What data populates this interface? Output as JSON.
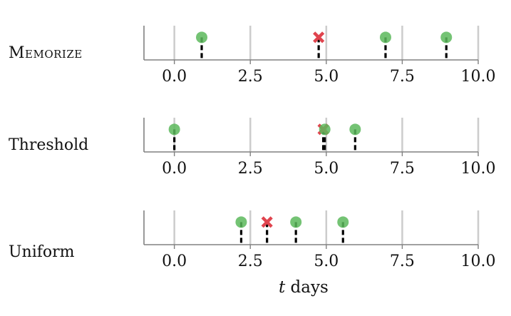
{
  "chart_data": [
    {
      "type": "scatter",
      "label": "Memorize",
      "xlim": [
        -1,
        10
      ],
      "xticks": [
        0.0,
        2.5,
        5.0,
        7.5,
        10.0
      ],
      "xtick_labels": [
        "0.0",
        "2.5",
        "5.0",
        "7.5",
        "10.0"
      ],
      "grid": true,
      "events": [
        {
          "x": 0.9,
          "outcome": "correct"
        },
        {
          "x": 4.75,
          "outcome": "incorrect"
        },
        {
          "x": 6.95,
          "outcome": "correct"
        },
        {
          "x": 8.95,
          "outcome": "correct"
        }
      ]
    },
    {
      "type": "scatter",
      "label": "Threshold",
      "xlim": [
        -1,
        10
      ],
      "xticks": [
        0.0,
        2.5,
        5.0,
        7.5,
        10.0
      ],
      "xtick_labels": [
        "0.0",
        "2.5",
        "5.0",
        "7.5",
        "10.0"
      ],
      "grid": true,
      "events": [
        {
          "x": 0.0,
          "outcome": "correct"
        },
        {
          "x": 4.9,
          "outcome": "incorrect"
        },
        {
          "x": 4.95,
          "outcome": "correct"
        },
        {
          "x": 5.95,
          "outcome": "correct"
        }
      ]
    },
    {
      "type": "scatter",
      "label": "Uniform",
      "xlim": [
        -1,
        10
      ],
      "xticks": [
        0.0,
        2.5,
        5.0,
        7.5,
        10.0
      ],
      "xtick_labels": [
        "0.0",
        "2.5",
        "5.0",
        "7.5",
        "10.0"
      ],
      "grid": true,
      "xlabel": "t days",
      "events": [
        {
          "x": 2.2,
          "outcome": "correct"
        },
        {
          "x": 3.05,
          "outcome": "incorrect"
        },
        {
          "x": 4.0,
          "outcome": "correct"
        },
        {
          "x": 5.55,
          "outcome": "correct"
        }
      ]
    }
  ],
  "labels": {
    "memorize": "Memorize",
    "threshold": "Threshold",
    "uniform": "Uniform"
  },
  "xlabel": {
    "math": "t",
    "text": " days"
  },
  "colors": {
    "correct": "#5cb85c",
    "incorrect": "#e0444e",
    "stem": "#000000",
    "grid": "#cccccc",
    "axis": "#808080"
  }
}
